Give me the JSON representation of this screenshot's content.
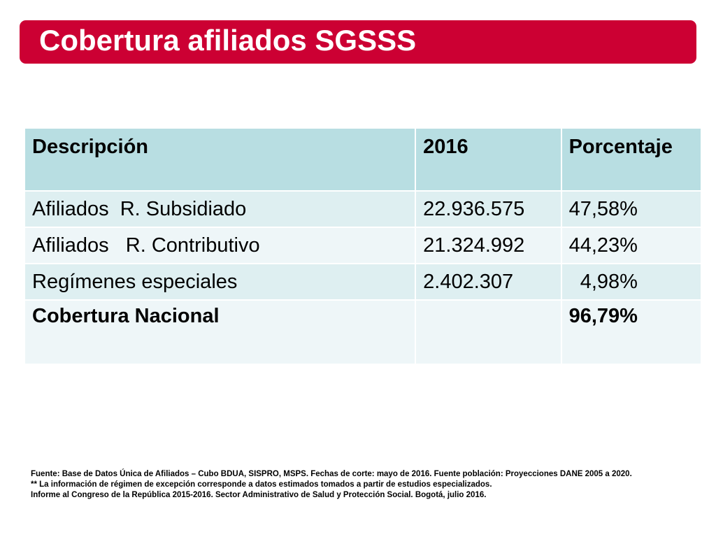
{
  "title": "Cobertura afiliados SGSSS",
  "table": {
    "headers": [
      "Descripción",
      "2016",
      "Porcentaje"
    ],
    "rows": [
      [
        "Afiliados  R. Subsidiado",
        "22.936.575",
        "47,58%"
      ],
      [
        "Afiliados   R. Contributivo",
        "21.324.992",
        "44,23%"
      ],
      [
        "Regímenes especiales",
        "2.402.307",
        "  4,98%"
      ]
    ],
    "total": [
      "Cobertura Nacional",
      "",
      "96,79%"
    ]
  },
  "footnotes": [
    "Fuente: Base de Datos Única de Afiliados – Cubo BDUA, SISPRO, MSPS. Fechas de corte: mayo de 2016.  Fuente población: Proyecciones DANE 2005 a 2020.",
    "** La información de régimen de excepción corresponde a datos estimados tomados a partir de estudios especializados.",
    "Informe al Congreso de la República 2015-2016. Sector Administrativo de Salud y Protección Social. Bogotá, julio 2016."
  ],
  "colors": {
    "title_bar": "#cc0033",
    "header_fill": "#b8dee2",
    "row_fill_odd": "#deeff1",
    "row_fill_even": "#eef6f8"
  }
}
